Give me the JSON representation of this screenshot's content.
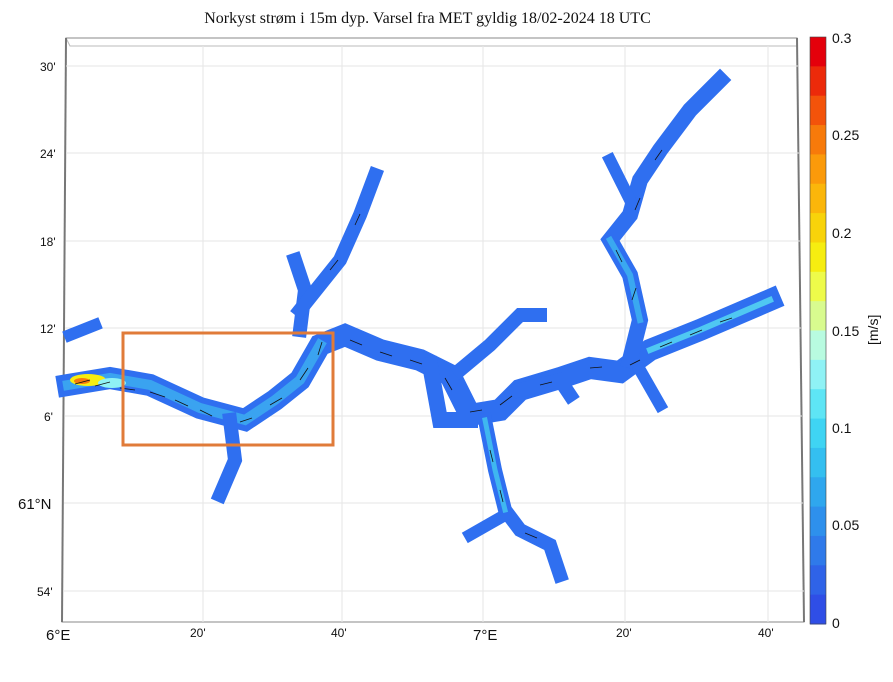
{
  "title": "Norkyst strøm i 15m dyp. Varsel fra MET gyldig 18/02-2024 18 UTC",
  "map": {
    "lat_ticks": [
      "30'",
      "24'",
      "18'",
      "12'",
      "6'",
      "61°N",
      "54'"
    ],
    "lon_ticks": [
      "6°E",
      "20'",
      "40'",
      "7°E",
      "20'",
      "40'"
    ],
    "highlight_box_color": "#e07b39",
    "water_base_color": "#2f6ff0",
    "vector_color": "#111111"
  },
  "colorbar": {
    "unit_label": "[m/s]",
    "ticks": [
      "0.3",
      "0.25",
      "0.2",
      "0.15",
      "0.1",
      "0.05",
      "0"
    ],
    "min": 0,
    "max": 0.3,
    "colors": [
      "#e4000b",
      "#ec2a0a",
      "#f3530a",
      "#f77a0a",
      "#fb9a0a",
      "#fbb60a",
      "#f8d30a",
      "#f6ed10",
      "#eefb4a",
      "#d8fb8f",
      "#b8fbe0",
      "#8ff2f5",
      "#5ee5f5",
      "#3fd4f3",
      "#34bff0",
      "#2fa7ee",
      "#2e90ec",
      "#2f7aea",
      "#2f63e8",
      "#2f4ee6"
    ]
  }
}
